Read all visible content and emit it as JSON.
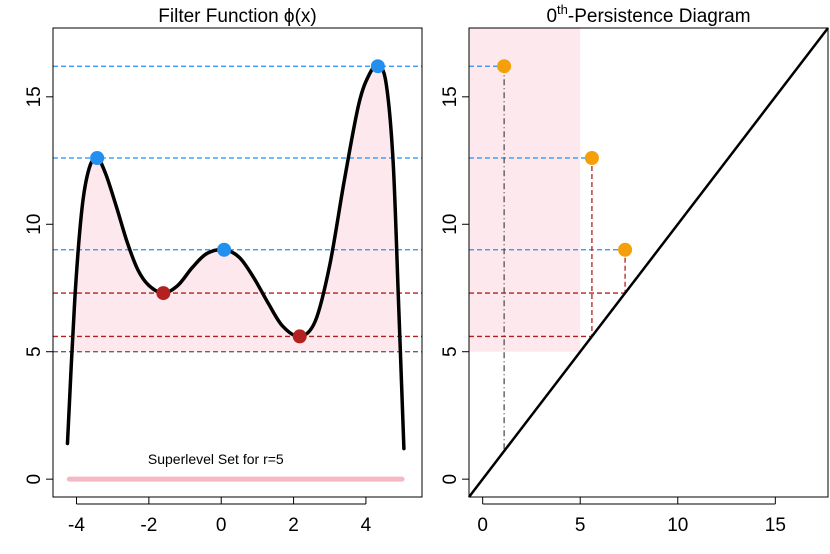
{
  "colors": {
    "shade": "#fde8ee",
    "critical_max": "#2390f0",
    "critical_min": "#b32020",
    "threshold_line": "#666666",
    "curve": "#000000",
    "persistence_point": "#f5a00a",
    "superlevel_bar": "#f7b8c6",
    "diagonal": "#000000"
  },
  "chart_data": [
    {
      "type": "line",
      "title_prefix": "Filter Function ",
      "title_symbol": "ϕ",
      "title_suffix": "(x)",
      "x_ticks": [
        -4,
        -2,
        0,
        2,
        4
      ],
      "x_tick_labels": [
        "-4",
        "-2",
        "0",
        "2",
        "4"
      ],
      "y_ticks": [
        0,
        5,
        10,
        15
      ],
      "y_tick_labels": [
        "0",
        "5",
        "10",
        "15"
      ],
      "xlim": [
        -4.65,
        5.55
      ],
      "ylim": [
        -0.7,
        17.7
      ],
      "threshold_r": 5,
      "maxima": [
        {
          "x": -3.43,
          "y": 12.6
        },
        {
          "x": 0.08,
          "y": 9.0
        },
        {
          "x": 4.33,
          "y": 16.2
        }
      ],
      "minima": [
        {
          "x": -1.6,
          "y": 7.3
        },
        {
          "x": 2.17,
          "y": 5.6
        }
      ],
      "curve": [
        {
          "x": -4.25,
          "y": 1.4
        },
        {
          "x": -4.05,
          "y": 7.0
        },
        {
          "x": -3.85,
          "y": 10.6
        },
        {
          "x": -3.65,
          "y": 12.2
        },
        {
          "x": -3.43,
          "y": 12.6
        },
        {
          "x": -3.2,
          "y": 12.0
        },
        {
          "x": -2.9,
          "y": 10.7
        },
        {
          "x": -2.6,
          "y": 9.3
        },
        {
          "x": -2.3,
          "y": 8.2
        },
        {
          "x": -2.0,
          "y": 7.6
        },
        {
          "x": -1.6,
          "y": 7.3
        },
        {
          "x": -1.2,
          "y": 7.6
        },
        {
          "x": -0.8,
          "y": 8.3
        },
        {
          "x": -0.4,
          "y": 8.85
        },
        {
          "x": 0.08,
          "y": 9.0
        },
        {
          "x": 0.5,
          "y": 8.7
        },
        {
          "x": 0.9,
          "y": 7.9
        },
        {
          "x": 1.3,
          "y": 6.9
        },
        {
          "x": 1.7,
          "y": 6.0
        },
        {
          "x": 2.17,
          "y": 5.6
        },
        {
          "x": 2.6,
          "y": 6.2
        },
        {
          "x": 3.0,
          "y": 8.4
        },
        {
          "x": 3.4,
          "y": 11.7
        },
        {
          "x": 3.8,
          "y": 14.7
        },
        {
          "x": 4.1,
          "y": 15.9
        },
        {
          "x": 4.33,
          "y": 16.2
        },
        {
          "x": 4.55,
          "y": 15.6
        },
        {
          "x": 4.75,
          "y": 12.5
        },
        {
          "x": 4.9,
          "y": 7.0
        },
        {
          "x": 5.05,
          "y": 1.2
        }
      ],
      "superlevel_bar": {
        "x_from": -4.2,
        "x_to": 5.0,
        "y": 0
      },
      "annotation": "Superlevel Set for r=5"
    },
    {
      "type": "scatter",
      "title_base": "0",
      "title_superscript": "th",
      "title_rest": "-Persistence Diagram",
      "x_ticks": [
        0,
        5,
        10,
        15
      ],
      "x_tick_labels": [
        "0",
        "5",
        "10",
        "15"
      ],
      "y_ticks": [
        0,
        5,
        10,
        15
      ],
      "y_tick_labels": [
        "0",
        "5",
        "10",
        "15"
      ],
      "xlim": [
        -0.7,
        17.7
      ],
      "ylim": [
        -0.7,
        17.7
      ],
      "shaded_region": {
        "x_to": 5,
        "y_from": 5
      },
      "points": [
        {
          "death": 1.1,
          "birth": 16.2
        },
        {
          "death": 5.6,
          "birth": 12.6
        },
        {
          "death": 7.3,
          "birth": 9.0
        }
      ]
    }
  ]
}
